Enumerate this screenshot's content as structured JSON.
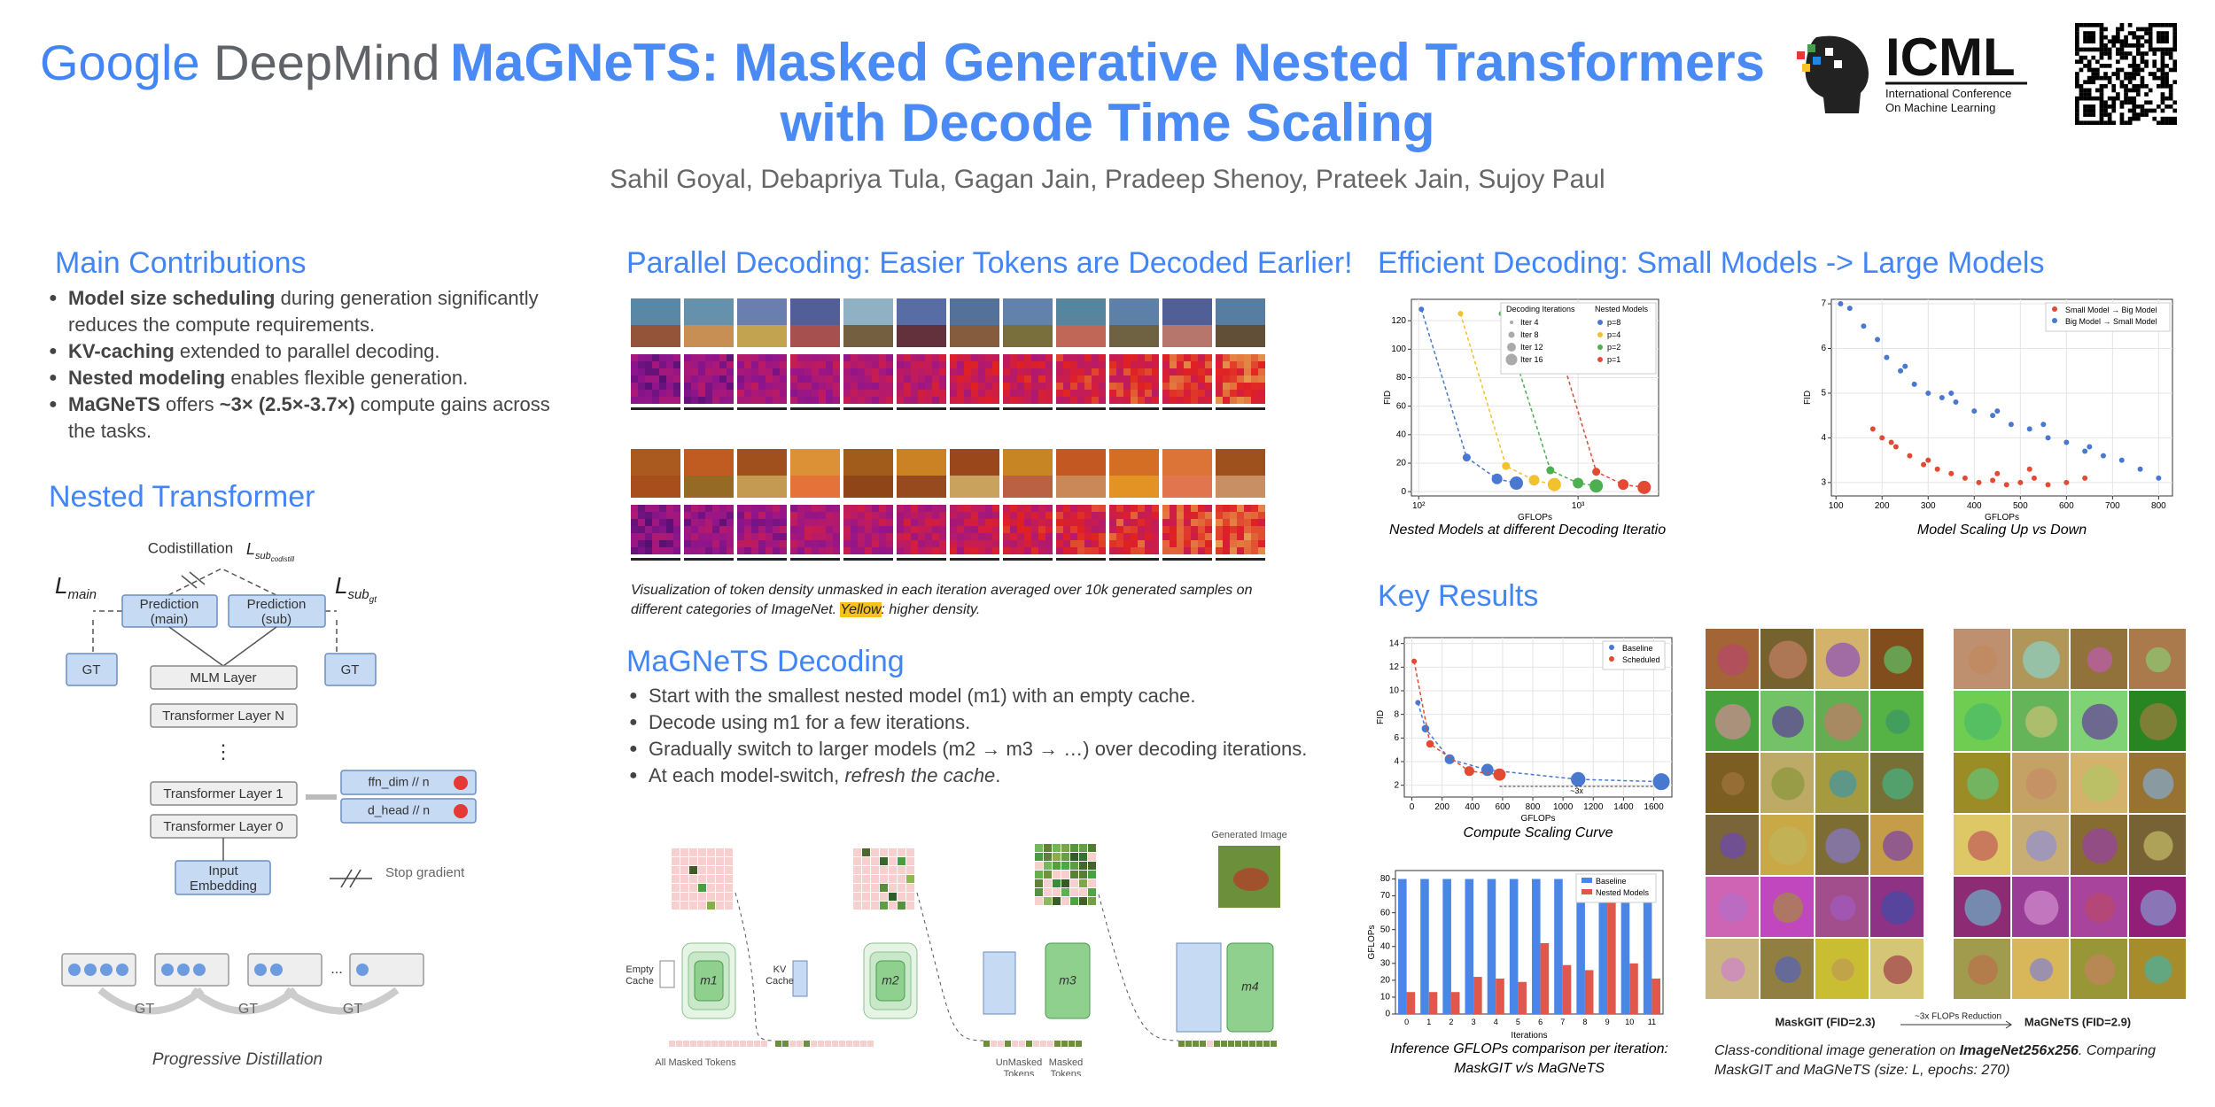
{
  "header": {
    "logo_google": "Google",
    "logo_deepmind": "DeepMind",
    "title_line1": "MaGNeTS: Masked Generative Nested Transformers",
    "title_line2": "with Decode Time Scaling",
    "authors": "Sahil Goyal, Debapriya Tula, Gagan Jain, Pradeep Shenoy, Prateek Jain, Sujoy Paul",
    "conference_short": "ICML",
    "conference_line1": "International Conference",
    "conference_line2": "On Machine Learning"
  },
  "contributions": {
    "heading": "Main Contributions",
    "bullets": [
      [
        {
          "text": "Model size scheduling",
          "bold": true
        },
        {
          "text": " during generation significantly reduces the compute requirements."
        }
      ],
      [
        {
          "text": "KV-caching",
          "bold": true
        },
        {
          "text": " extended to parallel decoding."
        }
      ],
      [
        {
          "text": "Nested modeling",
          "bold": true
        },
        {
          "text": " enables flexible generation."
        }
      ],
      [
        {
          "text": "MaGNeTS",
          "bold": true
        },
        {
          "text": " offers "
        },
        {
          "text": "~3× (2.5×-3.7×)",
          "bold": true
        },
        {
          "text": " compute gains across the tasks."
        }
      ]
    ]
  },
  "nested_transformer": {
    "heading": "Nested Transformer",
    "codistillation": "Codistillation",
    "loss_symbol": "L",
    "codistill_sub": "sub",
    "codistill_subsub": "codistill",
    "main_sub": "main",
    "gt_subsub": "gt",
    "prediction_main": [
      "Prediction",
      "(main)"
    ],
    "prediction_sub": [
      "Prediction",
      "(sub)"
    ],
    "gt": "GT",
    "mlm_layer": "MLM Layer",
    "layer_n": "Transformer Layer N",
    "ellipsis": "⋮",
    "layer_1": "Transformer Layer 1",
    "layer_0": "Transformer Layer 0",
    "input_embedding": [
      "Input",
      "Embedding"
    ],
    "ffn": "ffn_dim // n",
    "dhead": "d_head // n",
    "stop_gradient": "Stop gradient",
    "dots": "...",
    "progressive": "Progressive Distillation"
  },
  "parallel_decoding": {
    "heading": "Parallel Decoding: Easier Tokens are Decoded Earlier!",
    "caption": [
      {
        "text": "Visualization of token density unmasked in each iteration averaged over 10k generated samples on different categories of ImageNet. "
      },
      {
        "text": "Yellow",
        "highlight": true
      },
      {
        "text": ": higher density."
      }
    ]
  },
  "magnets_decoding": {
    "heading": "MaGNeTS Decoding",
    "bullets": [
      [
        {
          "text": "Start with the smallest nested model (m1) with an empty cache."
        }
      ],
      [
        {
          "text": "Decode using m1 for a few iterations."
        }
      ],
      [
        {
          "text": "Gradually switch to larger models (m2 → m3 → …) over decoding iterations."
        }
      ],
      [
        {
          "text": "At each model-switch, "
        },
        {
          "text": "refresh the cache",
          "italic": true
        },
        {
          "text": "."
        }
      ]
    ],
    "empty_cache": [
      "Empty",
      "Cache"
    ],
    "kv_cache": [
      "KV",
      "Cache"
    ],
    "models": [
      "m1",
      "m2",
      "m3",
      "m4"
    ],
    "all_masked": "All Masked Tokens",
    "unmasked": [
      "UnMasked",
      "Tokens"
    ],
    "masked": [
      "Masked",
      "Tokens"
    ],
    "generated": "Generated Image"
  },
  "efficient_decoding": {
    "heading": "Efficient Decoding: Small Models -> Large Models"
  },
  "key_results": {
    "heading": "Key Results",
    "grid_left": "MaskGIT (FID=2.3)",
    "grid_arrow": "~3x FLOPs Reduction",
    "grid_right": "MaGNeTS (FID=2.9)",
    "grid_caption": [
      {
        "text": "Class-conditional image generation on "
      },
      {
        "text": "ImageNet256x256",
        "bold": true
      },
      {
        "text": ". Comparing MaskGIT and MaGNeTS (size: L, epochs: 270)"
      }
    ]
  },
  "chart_data": [
    {
      "type": "line",
      "caption": "Nested Models at different Decoding Iterations",
      "xlabel": "GFLOPs",
      "ylabel": "FID",
      "xlog": true,
      "grid": true,
      "xlim": [
        90,
        3200
      ],
      "xticks": [
        {
          "value": 100,
          "label": "10²"
        },
        {
          "value": 1000,
          "label": "10³"
        }
      ],
      "ylim": [
        -3,
        135
      ],
      "yticks": [
        0,
        20,
        40,
        60,
        80,
        100,
        120
      ],
      "size_legend_title": "Decoding Iterations",
      "size_legend": [
        "Iter 4",
        "Iter 8",
        "Iter 12",
        "Iter 16"
      ],
      "legend_title": "Nested Models",
      "series": [
        {
          "name": "p=8",
          "color": "#4878cf",
          "x": [
            104,
            200,
            310,
            410
          ],
          "values": [
            128,
            24,
            9,
            6
          ]
        },
        {
          "name": "p=4",
          "color": "#f2c12e",
          "x": [
            183,
            353,
            530,
            710
          ],
          "values": [
            125,
            18,
            8,
            5
          ]
        },
        {
          "name": "p=2",
          "color": "#4caf50",
          "x": [
            330,
            670,
            1000,
            1300
          ],
          "values": [
            125,
            15,
            6,
            4
          ]
        },
        {
          "name": "p=1",
          "color": "#e24a33",
          "x": [
            660,
            1300,
            1920,
            2600
          ],
          "values": [
            123,
            14,
            5,
            3
          ]
        }
      ]
    },
    {
      "type": "scatter",
      "caption": "Model Scaling Up vs Down",
      "xlabel": "GFLOPs",
      "ylabel": "FID",
      "grid": true,
      "xlim": [
        90,
        830
      ],
      "xticks": [
        100,
        200,
        300,
        400,
        500,
        600,
        700,
        800
      ],
      "ylim": [
        2.7,
        7.1
      ],
      "yticks": [
        3,
        4,
        5,
        6,
        7
      ],
      "series": [
        {
          "name": "Small Model → Big Model",
          "color": "#e24a33",
          "x": [
            180,
            200,
            230,
            260,
            290,
            320,
            350,
            380,
            410,
            440,
            470,
            500,
            530,
            560,
            600,
            640,
            220,
            300,
            450,
            520
          ],
          "values": [
            4.2,
            4.0,
            3.8,
            3.6,
            3.4,
            3.3,
            3.2,
            3.1,
            3.0,
            3.05,
            2.95,
            3.0,
            3.1,
            2.95,
            3.0,
            3.1,
            3.9,
            3.5,
            3.2,
            3.3
          ]
        },
        {
          "name": "Big Model → Small Model",
          "color": "#4878cf",
          "x": [
            110,
            130,
            160,
            190,
            210,
            240,
            270,
            300,
            330,
            360,
            400,
            440,
            480,
            520,
            560,
            600,
            640,
            680,
            720,
            760,
            800,
            250,
            350,
            450,
            550,
            650
          ],
          "values": [
            7.0,
            6.9,
            6.5,
            6.2,
            5.8,
            5.5,
            5.2,
            5.0,
            4.9,
            4.8,
            4.6,
            4.5,
            4.3,
            4.2,
            4.0,
            3.9,
            3.7,
            3.6,
            3.5,
            3.3,
            3.1,
            5.6,
            5.0,
            4.6,
            4.3,
            3.8
          ]
        }
      ]
    },
    {
      "type": "line",
      "caption": "Compute Scaling Curve",
      "xlabel": "GFLOPs",
      "ylabel": "FID",
      "grid": true,
      "annotation": "~3x",
      "xlim": [
        -50,
        1720
      ],
      "xticks": [
        0,
        200,
        400,
        600,
        800,
        1000,
        1200,
        1400,
        1600
      ],
      "ylim": [
        1,
        14.5
      ],
      "yticks": [
        2,
        4,
        6,
        8,
        10,
        12,
        14
      ],
      "series": [
        {
          "name": "Baseline",
          "color": "#4878cf",
          "x": [
            40,
            90,
            250,
            500,
            1100,
            1650
          ],
          "values": [
            9,
            6.8,
            4.2,
            3.3,
            2.5,
            2.3
          ]
        },
        {
          "name": "Scheduled",
          "color": "#e24a33",
          "x": [
            15,
            120,
            380,
            580
          ],
          "values": [
            12.5,
            5.5,
            3.2,
            2.9
          ]
        }
      ]
    },
    {
      "type": "bar",
      "caption_lines": [
        "Inference GFLOPs comparison per iteration:",
        "MaskGIT v/s MaGNeTS"
      ],
      "xlabel": "Iterations",
      "ylabel": "GFLOPs",
      "categories": [
        "0",
        "1",
        "2",
        "3",
        "4",
        "5",
        "6",
        "7",
        "8",
        "9",
        "10",
        "11"
      ],
      "ylim": [
        0,
        85
      ],
      "yticks": [
        0,
        10,
        20,
        30,
        40,
        50,
        60,
        70,
        80
      ],
      "series": [
        {
          "name": "Baseline",
          "color": "#4a86e8",
          "values": [
            80,
            80,
            80,
            80,
            80,
            80,
            80,
            80,
            80,
            80,
            80,
            80
          ]
        },
        {
          "name": "Nested Models",
          "color": "#e0584b",
          "values": [
            13,
            13,
            13,
            22,
            21,
            19,
            42,
            29,
            26,
            80,
            30,
            21
          ]
        }
      ]
    }
  ]
}
